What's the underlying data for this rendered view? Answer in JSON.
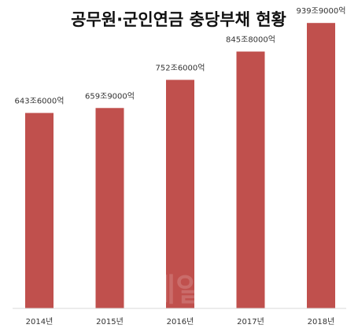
{
  "chart_data": {
    "type": "bar",
    "title": "공무원·군인연금 충당부채 현황",
    "categories": [
      "2014년",
      "2015년",
      "2016년",
      "2017년",
      "2018년"
    ],
    "values": [
      643.6,
      659.9,
      752.6,
      845.8,
      939.9
    ],
    "value_labels": [
      "643조6000억",
      "659조9000억",
      "752조6000억",
      "845조8000억",
      "939조9000억"
    ],
    "unit": "조",
    "ylim": [
      0,
      1000
    ],
    "xlabel": "",
    "ylabel": "",
    "grid": false,
    "legend": "none",
    "bar_color": "#c0504d"
  },
  "watermark": "e데일리"
}
